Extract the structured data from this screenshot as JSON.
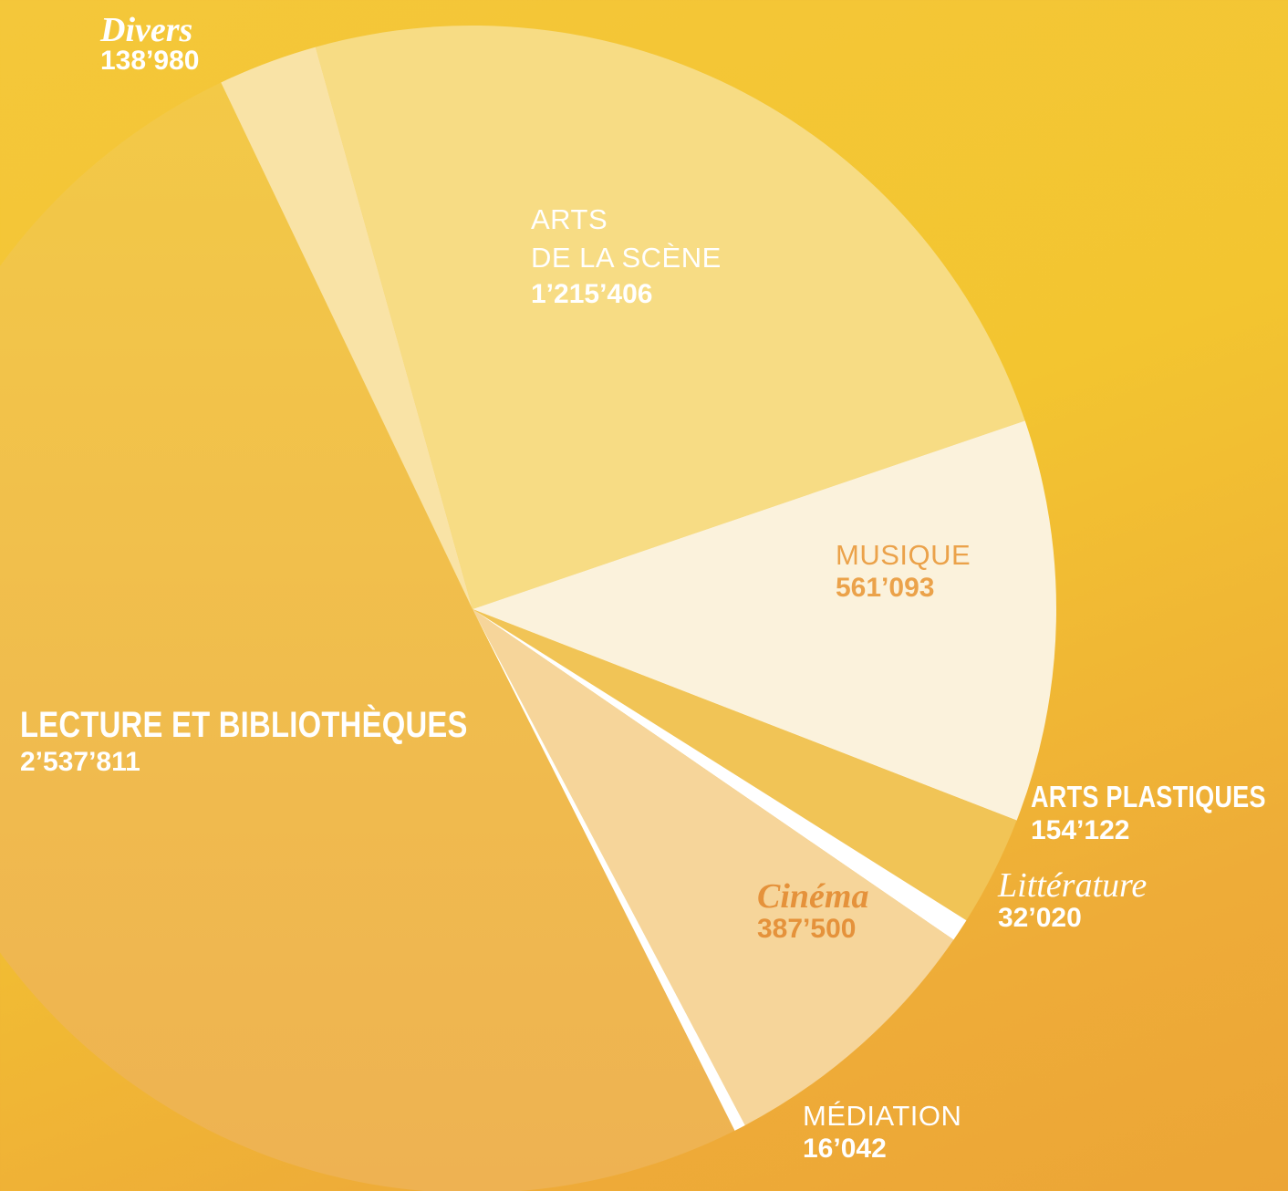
{
  "chart_data": {
    "type": "pie",
    "slices": [
      {
        "name": "ARTS\nDE LA SCÈNE",
        "value": 1215406,
        "value_label": "1’215’406",
        "color": "#f7dc84"
      },
      {
        "name": "MUSIQUE",
        "value": 561093,
        "value_label": "561’093",
        "color": "#fbf2dc"
      },
      {
        "name": "ARTS PLASTIQUES",
        "value": 154122,
        "value_label": "154’122",
        "color": "#f1c456"
      },
      {
        "name": "Littérature",
        "value": 32020,
        "value_label": "32’020",
        "color": "#ffffff"
      },
      {
        "name": "Cinéma",
        "value": 387500,
        "value_label": "387’500",
        "color": "#f6d59a"
      },
      {
        "name": "MÉDIATION",
        "value": 16042,
        "value_label": "16’042",
        "color": "#ffffff"
      },
      {
        "name": "LECTURE ET BIBLIOTHÈQUES",
        "value": 2537811,
        "value_label": "2’537’811",
        "color": "#f0b84e"
      },
      {
        "name": "Divers",
        "value": 138980,
        "value_label": "138’980",
        "color": "#f9e3a6"
      }
    ],
    "start_angle_deg": -15.6
  }
}
